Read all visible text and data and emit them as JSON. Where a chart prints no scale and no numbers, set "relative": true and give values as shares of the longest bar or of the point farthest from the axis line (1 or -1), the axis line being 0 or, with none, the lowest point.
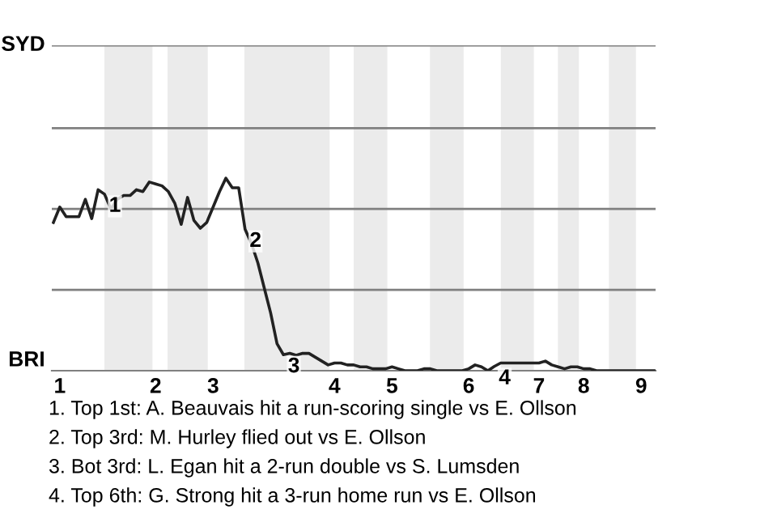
{
  "chart_data": {
    "type": "line",
    "relative": true,
    "categories": [
      null,
      "1",
      null,
      null,
      null,
      null,
      null,
      null,
      null,
      null,
      null,
      null,
      null,
      null,
      null,
      null,
      "2",
      null,
      null,
      null,
      null,
      null,
      null,
      null,
      null,
      "3",
      null,
      null,
      null,
      null,
      null,
      null,
      null,
      null,
      null,
      null,
      null,
      null,
      null,
      null,
      null,
      null,
      null,
      null,
      "4",
      null,
      null,
      null,
      null,
      null,
      null,
      null,
      null,
      "5",
      null,
      null,
      null,
      null,
      null,
      null,
      null,
      null,
      null,
      null,
      null,
      "6",
      null,
      null,
      null,
      null,
      null,
      null,
      null,
      null,
      null,
      null,
      "7",
      null,
      null,
      null,
      null,
      null,
      null,
      "8",
      null,
      null,
      null,
      null,
      null,
      null,
      null,
      null,
      "9",
      null,
      null
    ],
    "series": [
      {
        "color": "#222222",
        "values": [
          0.77,
          0.85,
          0.8,
          0.8,
          0.8,
          0.89,
          0.79,
          0.94,
          0.917,
          0.84,
          0.89,
          0.91,
          0.91,
          0.94,
          0.93,
          0.98,
          0.97,
          0.96,
          0.93,
          0.87,
          0.76,
          0.9,
          0.78,
          0.74,
          0.77,
          0.85,
          0.93,
          1.0,
          0.95,
          0.95,
          0.735,
          0.66,
          0.56,
          0.43,
          0.3,
          0.14,
          0.083,
          0.09,
          0.08,
          0.09,
          0.09,
          0.07,
          0.05,
          0.03,
          0.04,
          0.04,
          0.03,
          0.03,
          0.02,
          0.02,
          0.01,
          0.01,
          0.01,
          0.02,
          0.01,
          0,
          0,
          0,
          0.01,
          0.01,
          0,
          0,
          0,
          0,
          0,
          0.01,
          0.03,
          0.02,
          0,
          0.022,
          0.04,
          0.04,
          0.04,
          0.04,
          0.04,
          0.04,
          0.04,
          0.05,
          0.03,
          0.02,
          0.01,
          0.02,
          0.02,
          0.01,
          0.01,
          0,
          0,
          0,
          0,
          0,
          0,
          0,
          0,
          0,
          0
        ]
      }
    ],
    "marker": "none",
    "line_style": "solid",
    "ref_lines": [
      {
        "axis": "y",
        "value": 0.42,
        "color": "#808080"
      },
      {
        "axis": "y",
        "value": 0.84,
        "color": "#808080"
      },
      {
        "axis": "y",
        "value": 1.26,
        "color": "#808080"
      },
      {
        "axis": "y",
        "value": 1.69,
        "color": "#808080"
      }
    ],
    "annotations": [
      {
        "text": "1",
        "y": 0.917
      },
      {
        "text": "2",
        "y": 0.735
      },
      {
        "text": "3",
        "y": 0.083
      },
      {
        "text": "4",
        "y": 0.022
      },
      "SYD",
      "BRI",
      "1. Top 1st: A. Beauvais hit a run-scoring single vs E. Ollson",
      "2. Top 3rd: M. Hurley flied out vs E. Ollson",
      "3. Bot 3rd: L. Egan hit a 2-run double vs S. Lumsden",
      "4. Top 6th: G. Strong hit a 3-run home run vs E. Ollson"
    ]
  }
}
